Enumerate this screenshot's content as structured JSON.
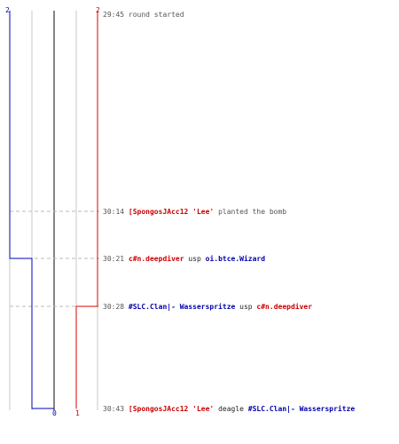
{
  "colors": {
    "team_blue": "#0000bb",
    "team_red": "#dd0000",
    "neutral_text": "#555555",
    "gridline": "#c8c8c8",
    "dashline": "#bbbbbb",
    "center_line": "#333333"
  },
  "top_counts": {
    "left": "2",
    "right": "2"
  },
  "bottom_counts": {
    "left": "0",
    "right": "1"
  },
  "events": [
    {
      "time": "29:45",
      "parts": [
        {
          "text": " round started",
          "color": "plain"
        }
      ]
    },
    {
      "time": "30:14",
      "parts": [
        {
          "text": " [SpongosJAcc12 'Lee'",
          "color": "red"
        },
        {
          "text": " planted the bomb",
          "color": "plain"
        }
      ]
    },
    {
      "time": "30:21",
      "parts": [
        {
          "text": " c#n.deepdiver",
          "color": "red"
        },
        {
          "text": " usp ",
          "color": "black"
        },
        {
          "text": "oi.btce.Wizard",
          "color": "blue"
        }
      ]
    },
    {
      "time": "30:28",
      "parts": [
        {
          "text": " #SLC.Clan|- Wasserspritze",
          "color": "blue"
        },
        {
          "text": " usp ",
          "color": "black"
        },
        {
          "text": "c#n.deepdiver",
          "color": "red"
        }
      ]
    },
    {
      "time": "30:43",
      "parts": [
        {
          "text": " [SpongosJAcc12 'Lee'",
          "color": "red"
        },
        {
          "text": " deagle ",
          "color": "black"
        },
        {
          "text": "#SLC.Clan|- Wasserspritze",
          "color": "blue"
        }
      ]
    }
  ]
}
